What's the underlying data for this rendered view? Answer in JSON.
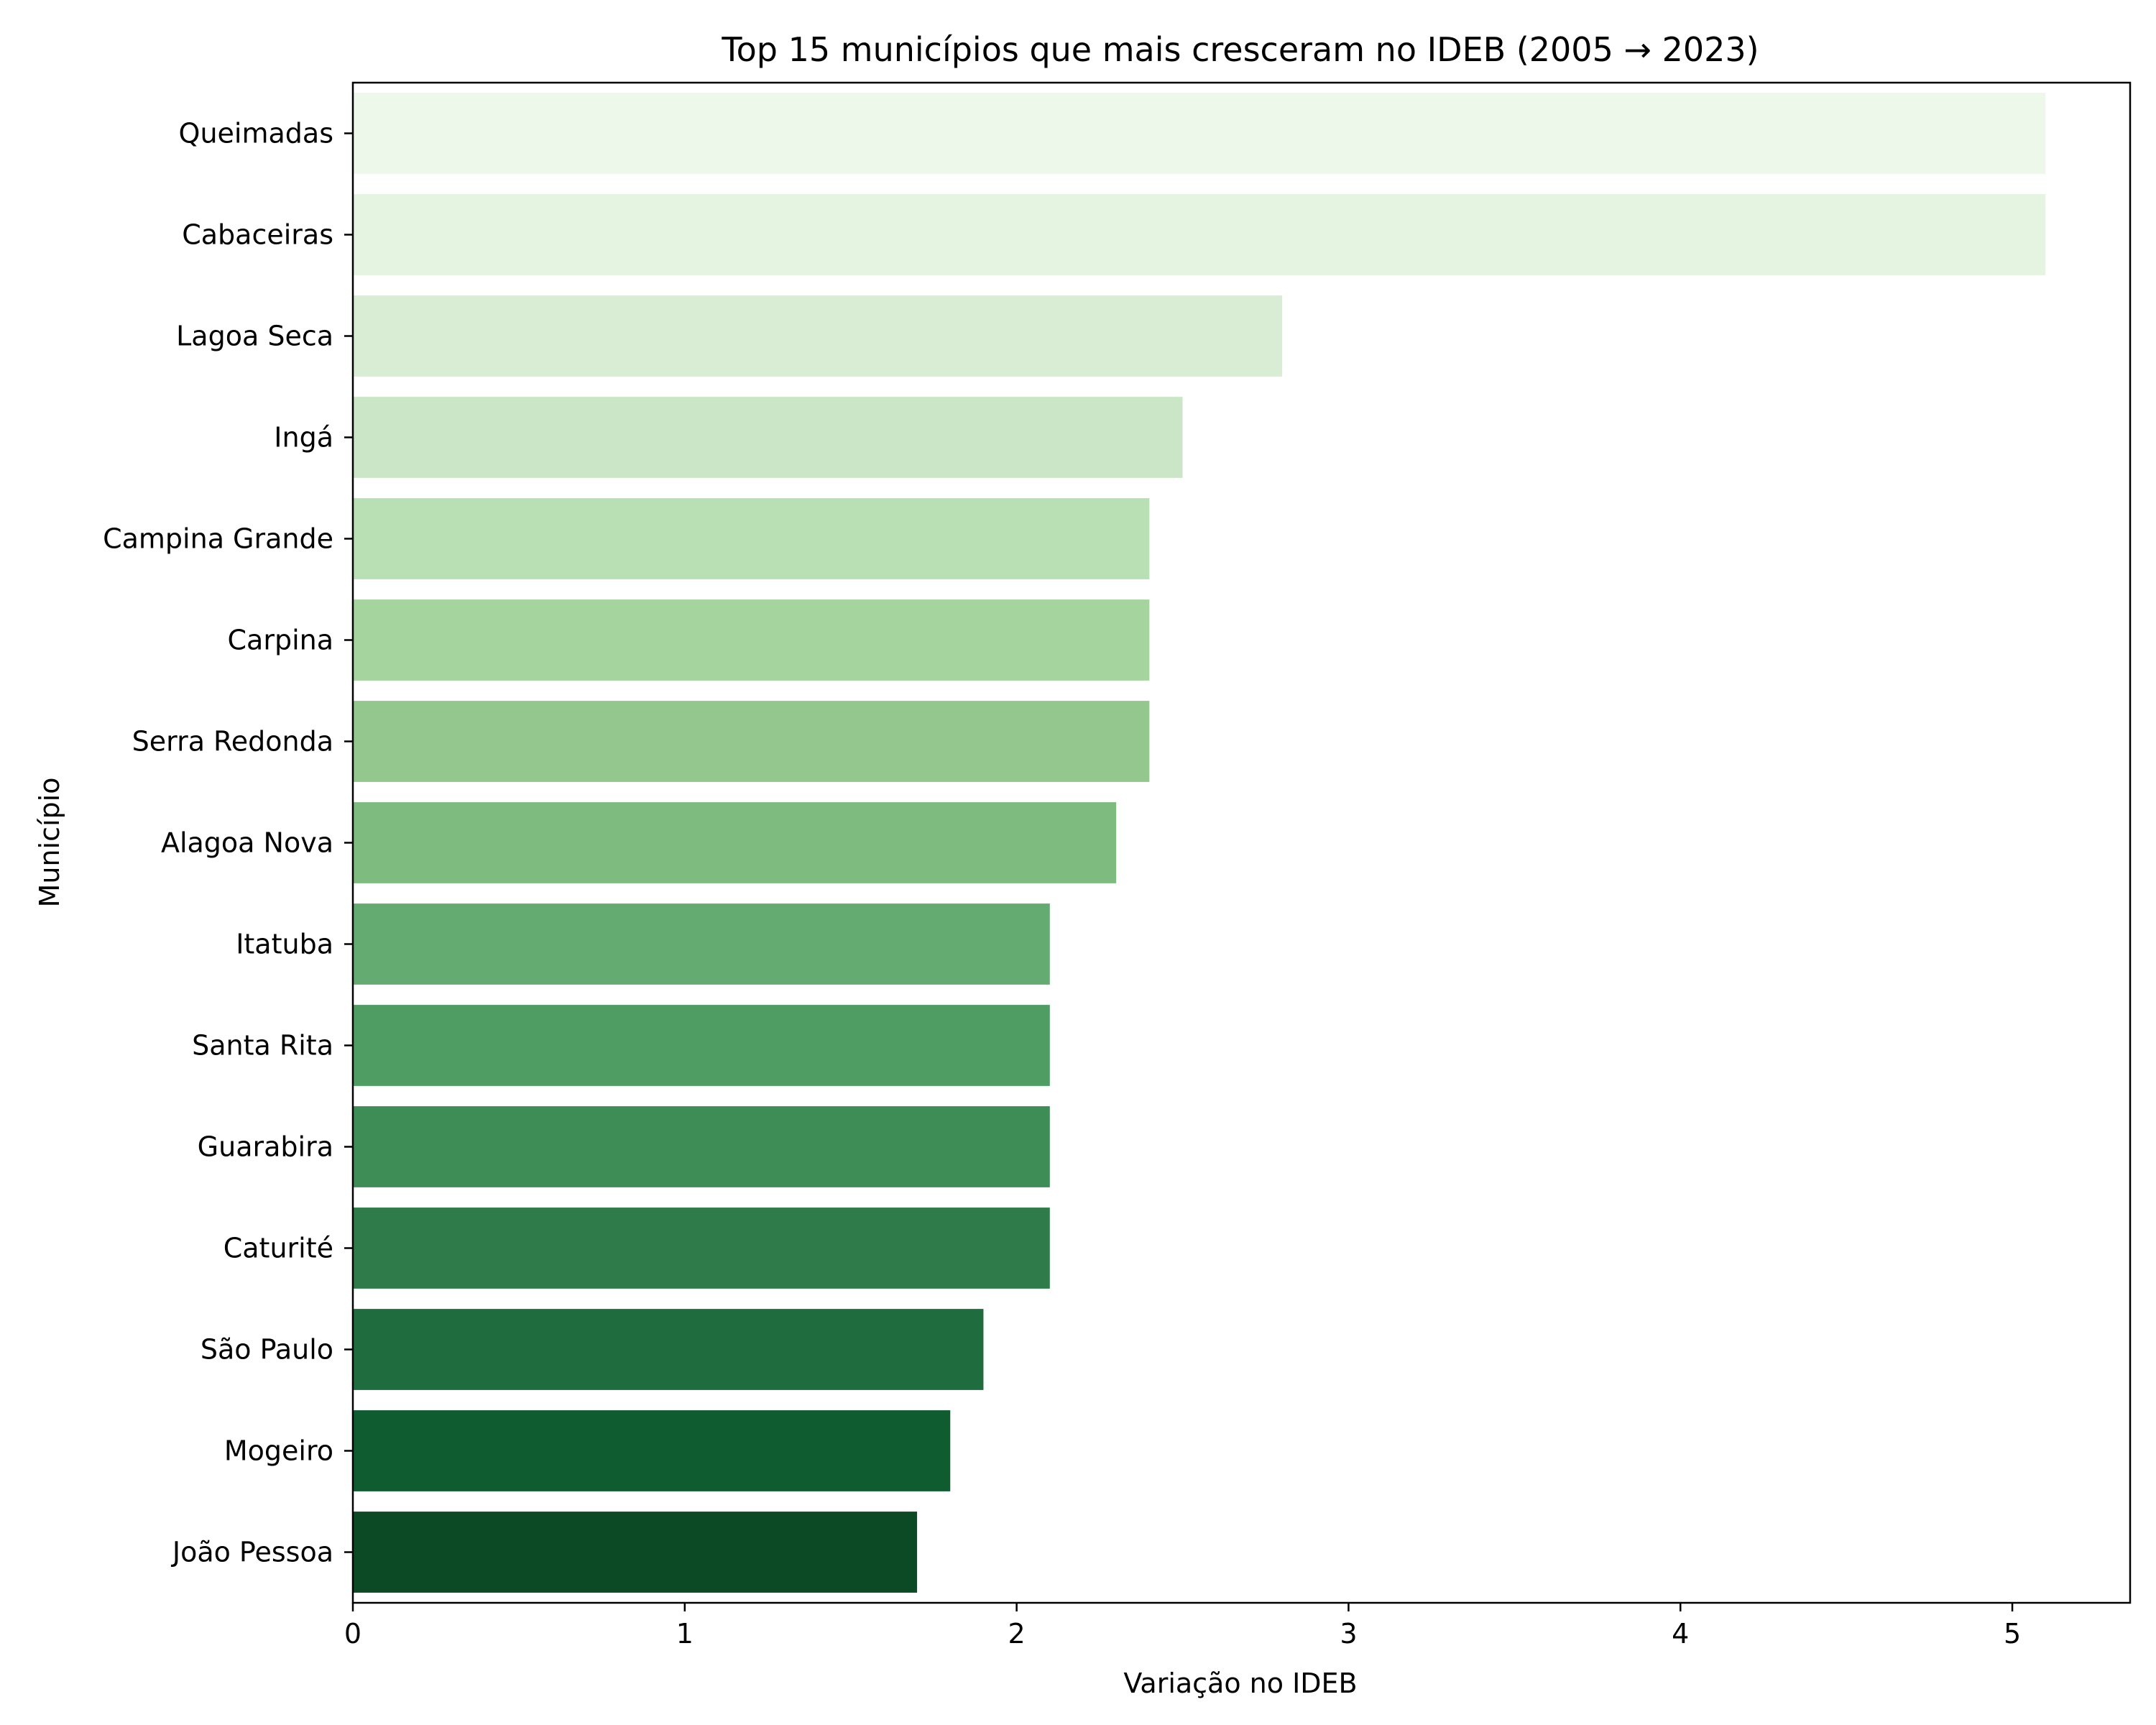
{
  "chart_data": {
    "type": "bar",
    "orientation": "horizontal",
    "title": "Top 15 municípios que mais cresceram no IDEB (2005 → 2023)",
    "xlabel": "Variação no IDEB",
    "ylabel": "Município",
    "categories": [
      "Queimadas",
      "Cabaceiras",
      "Lagoa Seca",
      "Ingá",
      "Campina Grande",
      "Carpina",
      "Serra Redonda",
      "Alagoa Nova",
      "Itatuba",
      "Santa Rita",
      "Guarabira",
      "Caturité",
      "São Paulo",
      "Mogeiro",
      "João Pessoa"
    ],
    "values": [
      5.1,
      5.1,
      2.8,
      2.5,
      2.4,
      2.4,
      2.4,
      2.3,
      2.1,
      2.1,
      2.1,
      2.1,
      1.9,
      1.8,
      1.7
    ],
    "colors": [
      "#edf7ea",
      "#e5f3e1",
      "#d8edd3",
      "#cbe6c6",
      "#b9dfb4",
      "#a6d49f",
      "#93c78d",
      "#7dbb7e",
      "#64ab72",
      "#4f9d63",
      "#3e8c56",
      "#2f7c4a",
      "#1f6d3e",
      "#0e5c2f",
      "#0b4a25"
    ],
    "xlim": [
      0,
      5.355
    ],
    "xticks": [
      "0",
      "1",
      "2",
      "3",
      "4",
      "5"
    ],
    "grid": false,
    "legend": "none"
  }
}
